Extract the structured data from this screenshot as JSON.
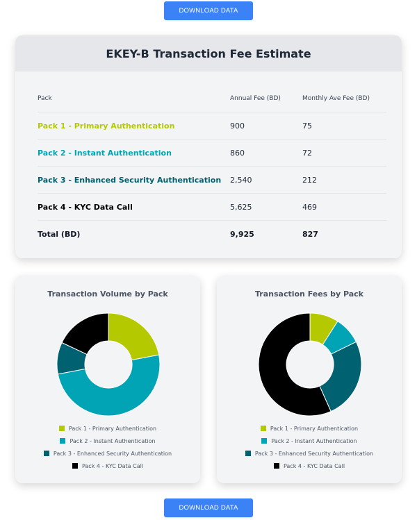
{
  "download_label": "DOWNLOAD DATA",
  "colors": {
    "pack1": "#b5c900",
    "pack2": "#00a4b4",
    "pack3": "#006170",
    "pack4": "#000000",
    "button": "#3b82f6"
  },
  "fee_table": {
    "title": "EKEY-B Transaction Fee Estimate",
    "headers": {
      "pack": "Pack",
      "annual": "Annual Fee (BD)",
      "monthly": "Monthly Ave Fee (BD)"
    },
    "rows": [
      {
        "pack": "Pack 1 - Primary Authentication",
        "annual": "900",
        "monthly": "75"
      },
      {
        "pack": "Pack 2 - Instant Authentication",
        "annual": "860",
        "monthly": "72"
      },
      {
        "pack": "Pack 3 - Enhanced Security Authentication",
        "annual": "2,540",
        "monthly": "212"
      },
      {
        "pack": "Pack 4 - KYC Data Call",
        "annual": "5,625",
        "monthly": "469"
      }
    ],
    "total": {
      "label": "Total (BD)",
      "annual": "9,925",
      "monthly": "827"
    }
  },
  "chart_data": [
    {
      "type": "pie",
      "title": "Transaction Volume by Pack",
      "categories": [
        "Pack 1 - Primary Authentication",
        "Pack 2 - Instant Authentication",
        "Pack 3 - Enhanced Security Authentication",
        "Pack 4 - KYC Data Call"
      ],
      "values": [
        22,
        50,
        10,
        18
      ],
      "legend": "bottom"
    },
    {
      "type": "pie",
      "title": "Transaction Fees by Pack",
      "categories": [
        "Pack 1 - Primary Authentication",
        "Pack 2 - Instant Authentication",
        "Pack 3 - Enhanced Security Authentication",
        "Pack 4 - KYC Data Call"
      ],
      "values": [
        900,
        860,
        2540,
        5625
      ],
      "legend": "bottom"
    }
  ]
}
